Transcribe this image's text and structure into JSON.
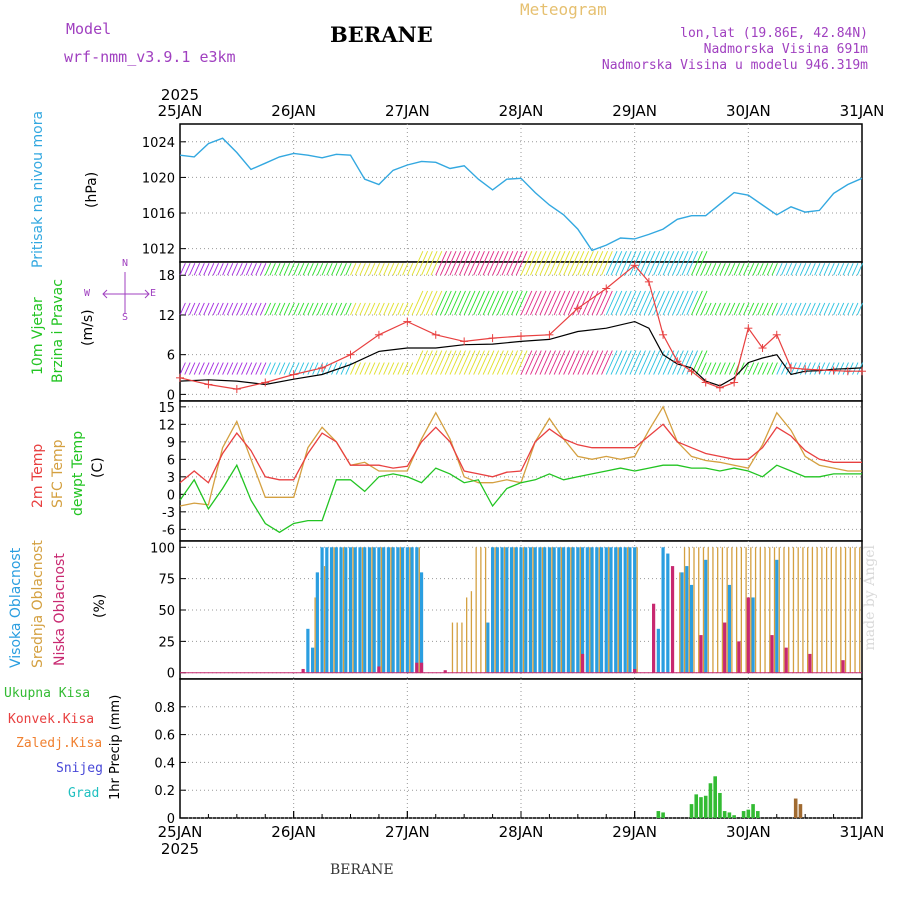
{
  "header": {
    "model_label": "Model",
    "model_name": "wrf-nmm_v3.9.1  e3km",
    "station": "BERANE",
    "title": "Meteogram",
    "coords": "lon,lat (19.86E, 42.84N)",
    "elevation": "Nadmorska Visina 691m",
    "model_elevation": "Nadmorska Visina u modelu 946.319m"
  },
  "footer": {
    "station": "BERANE",
    "watermark": "made by Angel"
  },
  "time_axis": {
    "year": "2025",
    "days": [
      "25JAN",
      "26JAN",
      "27JAN",
      "28JAN",
      "29JAN",
      "30JAN",
      "31JAN"
    ]
  },
  "panel_labels": {
    "pressure": {
      "name": "Pritisak na nivou mora",
      "unit": "(hPa)"
    },
    "wind": {
      "name1": "10m Vjetar",
      "name2": "Brzina i Pravac",
      "unit": "(m/s)",
      "compass": {
        "n": "N",
        "s": "S",
        "w": "W",
        "e": "E"
      }
    },
    "temp": {
      "t2m": "2m Temp",
      "sfc": "SFC Temp",
      "dew": "dewpt Temp",
      "unit": "(C)"
    },
    "cloud": {
      "high": "Visoka Oblacnost",
      "mid": "Srednja Oblacnost",
      "low": "Niska Oblacnost",
      "unit": "(%)"
    },
    "precip": {
      "total": "Ukupna Kisa",
      "conv": "Konvek.Kisa",
      "frz": "Zaledj.Kisa",
      "snow": "Snijeg",
      "hail": "Grad",
      "unit": "1hr Precip (mm)"
    }
  },
  "colors": {
    "pressure": "#33a8e0",
    "t2m": "#e84040",
    "sfc": "#d4a040",
    "dew": "#22c422",
    "high_cloud": "#2a9ee0",
    "mid_cloud": "#d4a040",
    "low_cloud": "#c82870",
    "precip_total": "#33bb33",
    "precip_conv": "#e84040",
    "precip_frz": "#f08030",
    "snow": "#4848d8",
    "hail": "#20c0c0",
    "wind_speed": "#000000",
    "gust": "#e84040"
  },
  "chart_data": [
    {
      "type": "line",
      "id": "pressure",
      "ylabel": "(hPa)",
      "ylim": [
        1010.5,
        1026
      ],
      "yticks": [
        1012,
        1016,
        1020,
        1024
      ],
      "xlim": [
        0,
        144
      ],
      "series": [
        {
          "x": [
            0,
            3,
            6,
            9,
            12,
            15,
            18,
            21,
            24,
            27,
            30,
            33,
            36,
            39,
            42,
            45,
            48,
            51,
            54,
            57,
            60,
            63,
            66,
            69,
            72,
            75,
            78,
            81,
            84,
            87,
            90,
            93,
            96,
            99,
            102,
            105,
            108,
            111,
            114,
            117,
            120,
            123,
            126,
            129,
            132,
            135,
            138,
            141,
            144
          ],
          "values": [
            1022.5,
            1022.3,
            1023.8,
            1024.4,
            1022.8,
            1020.9,
            1021.6,
            1022.3,
            1022.7,
            1022.5,
            1022.2,
            1022.6,
            1022.5,
            1019.8,
            1019.2,
            1020.8,
            1021.4,
            1021.8,
            1021.7,
            1021.0,
            1021.3,
            1019.8,
            1018.6,
            1019.8,
            1019.9,
            1018.3,
            1016.9,
            1015.8,
            1014.2,
            1011.8,
            1012.4,
            1013.2,
            1013.1,
            1013.6,
            1014.2,
            1015.3,
            1015.7,
            1015.7,
            1017.0,
            1018.3,
            1018.0,
            1016.9,
            1015.8,
            1016.7,
            1016.1,
            1016.3,
            1018.2,
            1019.2,
            1019.9
          ]
        }
      ]
    },
    {
      "type": "line",
      "id": "wind",
      "ylabel": "(m/s)",
      "ylim": [
        -1,
        20
      ],
      "yticks": [
        0,
        6,
        12,
        18
      ],
      "xlim": [
        0,
        144
      ],
      "series": [
        {
          "name": "10m wind speed",
          "x": [
            0,
            6,
            12,
            18,
            24,
            30,
            36,
            42,
            48,
            54,
            60,
            66,
            72,
            78,
            84,
            90,
            96,
            99,
            102,
            105,
            108,
            111,
            114,
            117,
            120,
            123,
            126,
            129,
            132,
            135,
            138,
            141,
            144
          ],
          "values": [
            2.0,
            2.2,
            2.0,
            1.5,
            2.3,
            3.0,
            4.5,
            6.5,
            7.0,
            7.0,
            7.5,
            7.6,
            8.0,
            8.3,
            9.5,
            10.0,
            11.0,
            10.0,
            6.0,
            4.6,
            4.0,
            2.0,
            1.3,
            2.5,
            4.8,
            5.5,
            6.0,
            3.0,
            3.5,
            3.6,
            3.8,
            3.9,
            4.0
          ]
        },
        {
          "name": "gust",
          "x": [
            0,
            6,
            12,
            18,
            24,
            30,
            36,
            42,
            48,
            54,
            60,
            66,
            72,
            78,
            84,
            90,
            96,
            99,
            102,
            105,
            108,
            111,
            114,
            117,
            120,
            123,
            126,
            129,
            132,
            135,
            138,
            141,
            144
          ],
          "values": [
            2.5,
            1.5,
            0.8,
            1.8,
            3.0,
            4.0,
            6.0,
            9.0,
            11.0,
            9.0,
            8.0,
            8.5,
            8.8,
            9.0,
            13.0,
            16.0,
            19.5,
            17.0,
            9.0,
            5.0,
            3.5,
            1.8,
            1.0,
            1.8,
            10.0,
            7.0,
            9.0,
            4.0,
            3.8,
            3.7,
            3.6,
            3.5,
            3.5
          ]
        }
      ]
    },
    {
      "type": "line",
      "id": "temp",
      "ylabel": "(C)",
      "ylim": [
        -8,
        16
      ],
      "yticks": [
        -6,
        -3,
        0,
        3,
        6,
        9,
        12,
        15
      ],
      "xlim": [
        0,
        144
      ],
      "series": [
        {
          "name": "2m Temp",
          "x": [
            0,
            3,
            6,
            9,
            12,
            15,
            18,
            21,
            24,
            27,
            30,
            33,
            36,
            39,
            42,
            45,
            48,
            51,
            54,
            57,
            60,
            63,
            66,
            69,
            72,
            75,
            78,
            81,
            84,
            87,
            90,
            93,
            96,
            99,
            102,
            105,
            108,
            111,
            114,
            117,
            120,
            123,
            126,
            129,
            132,
            135,
            138,
            141,
            144
          ],
          "values": [
            2.0,
            4.0,
            2.0,
            7.0,
            10.5,
            7.5,
            3.0,
            2.5,
            2.5,
            7.0,
            10.5,
            9.0,
            5.0,
            5.0,
            5.0,
            4.5,
            4.8,
            9.0,
            11.5,
            9.0,
            4.0,
            3.5,
            3.0,
            3.8,
            4.0,
            9.0,
            11.2,
            9.5,
            8.5,
            8.0,
            8.0,
            8.0,
            8.0,
            10.0,
            12.0,
            9.0,
            8.0,
            7.0,
            6.5,
            6.0,
            6.0,
            8.0,
            11.5,
            10.0,
            7.5,
            6.0,
            5.5,
            5.5,
            5.5
          ]
        },
        {
          "name": "SFC Temp",
          "x": [
            0,
            3,
            6,
            9,
            12,
            15,
            18,
            21,
            24,
            27,
            30,
            33,
            36,
            39,
            42,
            45,
            48,
            51,
            54,
            57,
            60,
            63,
            66,
            69,
            72,
            75,
            78,
            81,
            84,
            87,
            90,
            93,
            96,
            99,
            102,
            105,
            108,
            111,
            114,
            117,
            120,
            123,
            126,
            129,
            132,
            135,
            138,
            141,
            144
          ],
          "values": [
            -2.0,
            -1.5,
            -1.8,
            8.0,
            12.5,
            6.0,
            -0.5,
            -0.5,
            -0.5,
            8.0,
            11.5,
            9.0,
            5.0,
            5.5,
            4.0,
            4.0,
            4.0,
            9.5,
            14.0,
            9.5,
            3.0,
            2.0,
            2.0,
            2.5,
            2.0,
            9.0,
            13.0,
            9.5,
            6.5,
            6.0,
            6.5,
            6.0,
            6.5,
            11.0,
            15.0,
            9.0,
            6.5,
            5.8,
            5.5,
            5.0,
            4.5,
            8.5,
            14.0,
            11.0,
            6.5,
            5.0,
            4.5,
            4.0,
            4.0
          ]
        },
        {
          "name": "dewpt Temp",
          "x": [
            0,
            3,
            6,
            9,
            12,
            15,
            18,
            21,
            24,
            27,
            30,
            33,
            36,
            39,
            42,
            45,
            48,
            51,
            54,
            57,
            60,
            63,
            66,
            69,
            72,
            75,
            78,
            81,
            84,
            87,
            90,
            93,
            96,
            99,
            102,
            105,
            108,
            111,
            114,
            117,
            120,
            123,
            126,
            129,
            132,
            135,
            138,
            141,
            144
          ],
          "values": [
            -1.0,
            2.5,
            -2.5,
            1.0,
            5.0,
            -1.0,
            -5.0,
            -6.5,
            -5.0,
            -4.5,
            -4.5,
            2.5,
            2.5,
            0.5,
            3.0,
            3.5,
            3.0,
            2.0,
            4.5,
            3.5,
            2.0,
            2.5,
            -2.0,
            1.0,
            2.0,
            2.5,
            3.5,
            2.5,
            3.0,
            3.5,
            4.0,
            4.5,
            4.0,
            4.5,
            5.0,
            5.0,
            4.5,
            4.5,
            4.0,
            4.5,
            4.0,
            3.0,
            5.0,
            4.0,
            3.0,
            3.0,
            3.5,
            3.5,
            3.5
          ]
        }
      ]
    },
    {
      "type": "bar",
      "id": "cloud",
      "ylabel": "(%)",
      "ylim": [
        -5,
        105
      ],
      "yticks": [
        0,
        25,
        50,
        75,
        100
      ],
      "xlim": [
        0,
        144
      ],
      "series": [
        {
          "name": "Visoka Oblacnost",
          "x": [
            27,
            28,
            29,
            30,
            31,
            32,
            33,
            34,
            35,
            36,
            37,
            38,
            39,
            40,
            41,
            42,
            43,
            44,
            45,
            46,
            47,
            48,
            49,
            50,
            51,
            65,
            66,
            67,
            68,
            69,
            70,
            71,
            72,
            73,
            74,
            75,
            76,
            77,
            78,
            79,
            80,
            81,
            82,
            83,
            84,
            85,
            86,
            87,
            88,
            89,
            90,
            91,
            92,
            93,
            94,
            95,
            96,
            101,
            102,
            103,
            106,
            107,
            108,
            111,
            116,
            121,
            126
          ],
          "values": [
            35,
            20,
            80,
            100,
            100,
            100,
            100,
            100,
            100,
            100,
            100,
            100,
            100,
            100,
            100,
            100,
            100,
            100,
            100,
            100,
            100,
            100,
            100,
            100,
            80,
            40,
            100,
            100,
            100,
            100,
            100,
            100,
            100,
            100,
            100,
            100,
            100,
            100,
            100,
            100,
            100,
            100,
            100,
            100,
            100,
            100,
            100,
            100,
            100,
            100,
            100,
            100,
            100,
            100,
            100,
            100,
            100,
            35,
            100,
            95,
            80,
            85,
            70,
            90,
            70,
            60,
            90
          ]
        },
        {
          "name": "Srednja Oblacnost",
          "x": [
            28,
            30,
            32,
            34,
            36,
            38,
            40,
            42,
            44,
            46,
            48,
            50,
            57,
            58,
            59,
            60,
            61,
            62,
            63,
            64,
            66,
            68,
            70,
            72,
            74,
            76,
            78,
            80,
            82,
            84,
            86,
            88,
            90,
            92,
            94,
            96,
            105,
            106,
            107,
            108,
            109,
            110,
            111,
            112,
            113,
            114,
            115,
            116,
            117,
            118,
            119,
            120,
            121,
            122,
            123,
            124,
            125,
            126,
            127,
            128,
            129,
            130,
            131,
            132,
            133,
            134,
            135,
            136,
            137,
            138,
            139,
            140,
            141,
            142,
            143
          ],
          "values": [
            60,
            85,
            100,
            100,
            100,
            100,
            100,
            100,
            100,
            100,
            100,
            100,
            40,
            40,
            40,
            60,
            65,
            100,
            100,
            100,
            100,
            100,
            100,
            100,
            100,
            100,
            100,
            100,
            100,
            100,
            100,
            100,
            100,
            100,
            100,
            100,
            80,
            100,
            100,
            100,
            100,
            100,
            100,
            100,
            100,
            100,
            100,
            100,
            100,
            100,
            100,
            100,
            100,
            100,
            100,
            100,
            100,
            100,
            100,
            100,
            100,
            100,
            100,
            100,
            100,
            100,
            100,
            100,
            100,
            100,
            100,
            100,
            100,
            100,
            100
          ]
        },
        {
          "name": "Niska Oblacnost",
          "x": [
            26,
            42,
            50,
            51,
            56,
            85,
            96,
            100,
            104,
            110,
            115,
            118,
            120,
            125,
            128,
            133,
            140
          ],
          "values": [
            3,
            5,
            8,
            8,
            2,
            15,
            3,
            55,
            85,
            30,
            40,
            25,
            60,
            30,
            20,
            15,
            10
          ]
        }
      ]
    },
    {
      "type": "bar",
      "id": "precip",
      "ylabel": "1hr Precip (mm)",
      "ylim": [
        0,
        1.0
      ],
      "yticks": [
        0,
        0.2,
        0.4,
        0.6,
        0.8
      ],
      "xlim": [
        0,
        144
      ],
      "series": [
        {
          "name": "Ukupna Kisa",
          "x": [
            101,
            102,
            108,
            109,
            110,
            111,
            112,
            113,
            114,
            115,
            116,
            117,
            119,
            120,
            121,
            122
          ],
          "values": [
            0.05,
            0.04,
            0.1,
            0.17,
            0.15,
            0.16,
            0.25,
            0.3,
            0.18,
            0.05,
            0.04,
            0.02,
            0.05,
            0.06,
            0.1,
            0.05
          ]
        },
        {
          "name": "Zaledj.Kisa",
          "x": [
            130,
            131
          ],
          "values": [
            0.14,
            0.1
          ]
        }
      ]
    }
  ]
}
